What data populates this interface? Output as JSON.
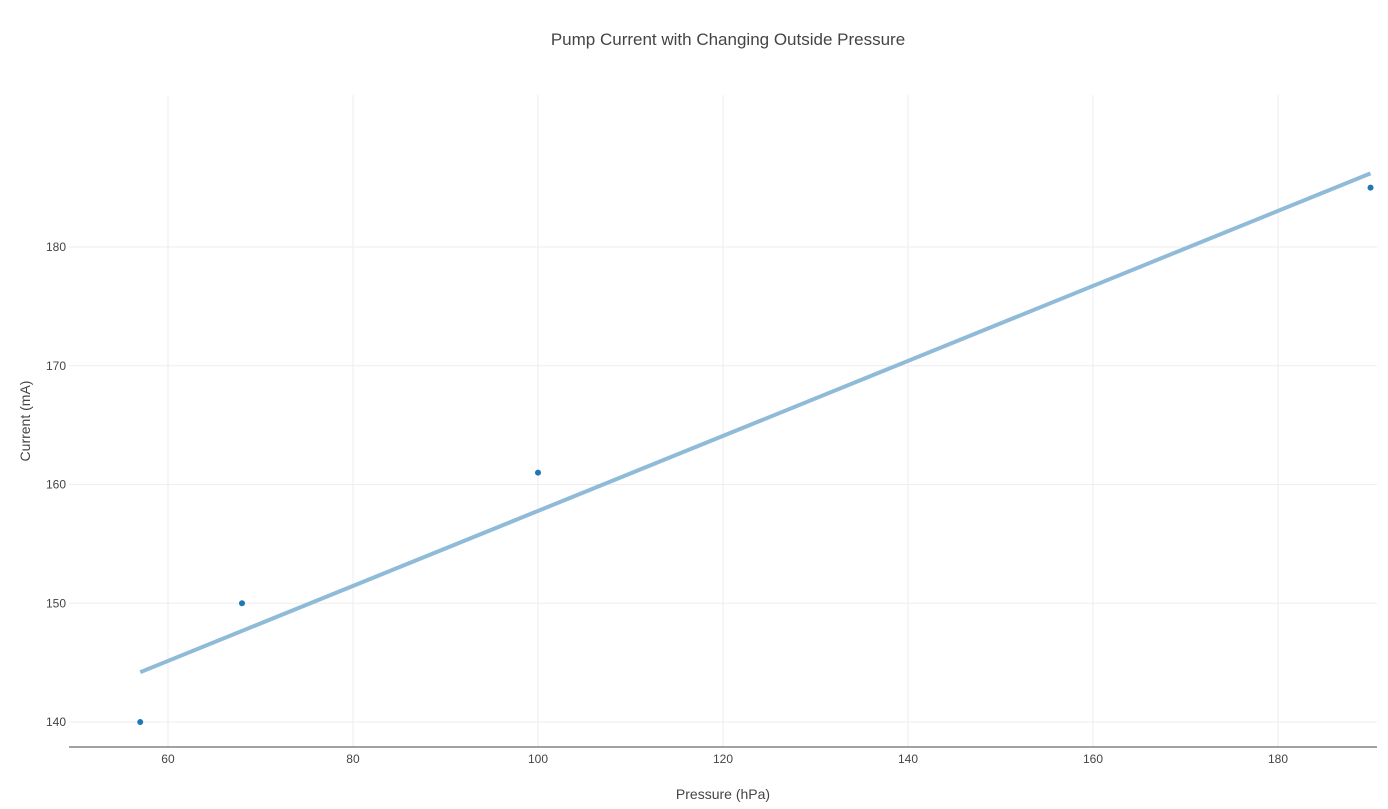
{
  "chart_data": {
    "type": "scatter",
    "title": "Pump Current with Changing Outside Pressure",
    "xlabel": "Pressure (hPa)",
    "ylabel": "Current (mA)",
    "xlim": [
      49.3,
      190.7
    ],
    "ylim": [
      137.9,
      192.8
    ],
    "x_ticks": [
      60,
      80,
      100,
      120,
      140,
      160,
      180
    ],
    "y_ticks": [
      140,
      150,
      160,
      170,
      180
    ],
    "grid": true,
    "legend": "none",
    "series": [
      {
        "mode": "markers",
        "color": "#1f77b4",
        "points": [
          {
            "x": 57,
            "y": 140
          },
          {
            "x": 68,
            "y": 150
          },
          {
            "x": 100,
            "y": 161
          },
          {
            "x": 190,
            "y": 185
          }
        ]
      },
      {
        "mode": "line",
        "color": "#8fbbd9",
        "points": [
          {
            "x": 57,
            "y": 144.2
          },
          {
            "x": 190,
            "y": 186.2
          }
        ]
      }
    ]
  }
}
